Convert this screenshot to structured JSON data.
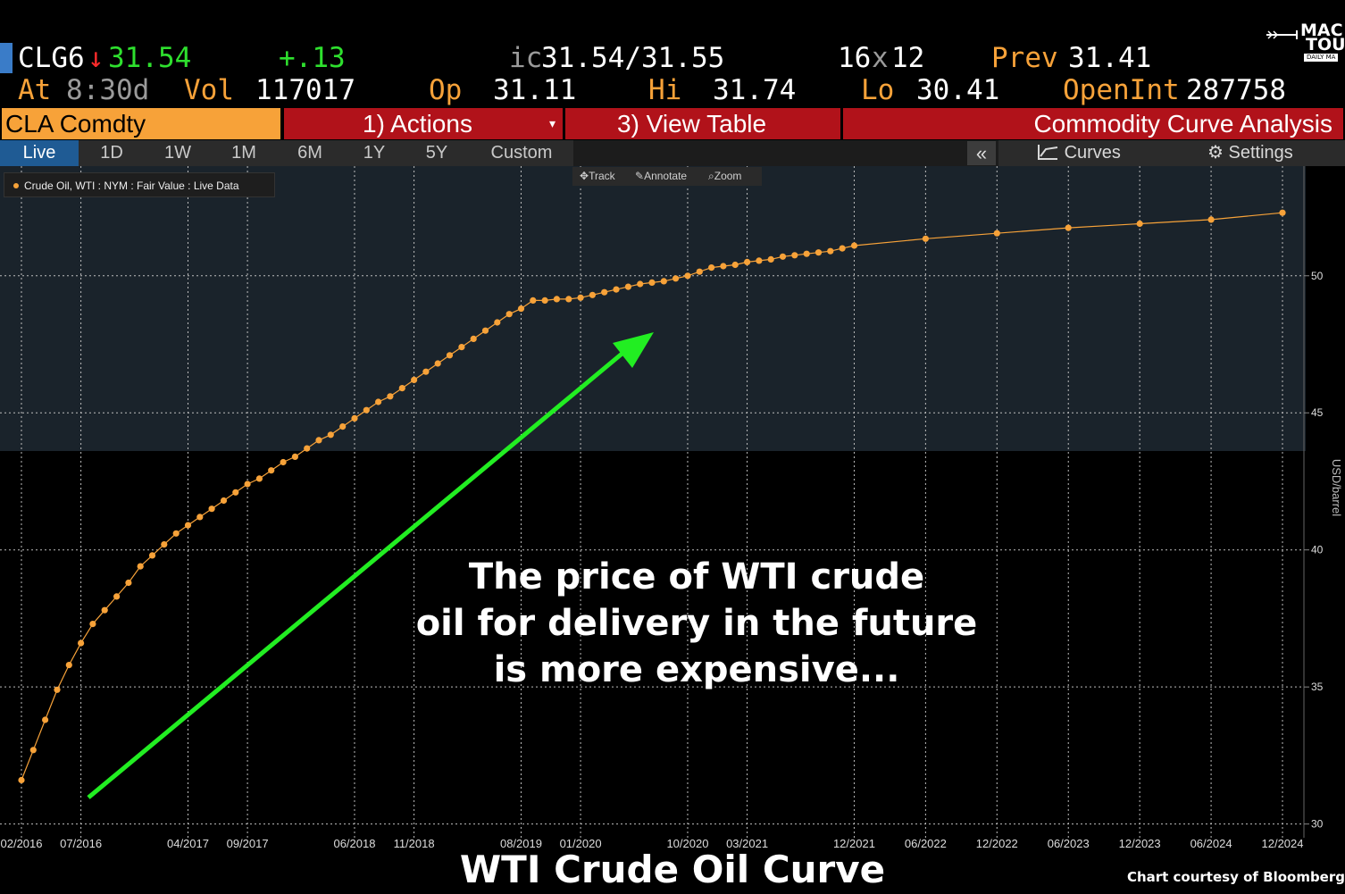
{
  "quote": {
    "ticker": "CLG6",
    "arrow": "↓",
    "last": "31.54",
    "change": "+.13",
    "bid_prefix": "ic",
    "bid_ask": "31.54/31.55",
    "size_bid": "16",
    "size_x": "x",
    "size_ask": "12",
    "prev_label": "Prev",
    "prev": "31.41",
    "at_label": "At",
    "at_time": "8:30d",
    "vol_label": "Vol",
    "vol": "117017",
    "op_label": "Op",
    "op": "31.11",
    "hi_label": "Hi",
    "hi": "31.74",
    "lo_label": "Lo",
    "lo": "30.41",
    "openint_label": "OpenInt",
    "openint": "287758"
  },
  "brand": {
    "line1": "MAC",
    "line2": "TOUR",
    "line3": "DAILY MA"
  },
  "toolbar": {
    "security": "CLA Comdty",
    "actions": "1) Actions",
    "view_table": "3) View Table",
    "function": "Commodity Curve Analysis"
  },
  "ranges": [
    "Live",
    "1D",
    "1W",
    "1M",
    "6M",
    "1Y",
    "5Y",
    "Custom"
  ],
  "active_range": "Live",
  "panel_controls": {
    "collapse": "«",
    "curves": "Curves",
    "settings": "Settings"
  },
  "tools": {
    "track": "Track",
    "annotate": "Annotate",
    "zoom": "Zoom"
  },
  "colors": {
    "series": "#f7a239",
    "arrow": "#22ee22",
    "toolbar_red": "#b1121a",
    "ticker_bg": "#f7a239",
    "active_tab": "#1f5b94"
  },
  "chart_data": {
    "type": "line",
    "legend": "Crude Oil, WTI : NYM : Fair Value : Live Data",
    "ylabel": "USD/barrel",
    "ylim": [
      29.5,
      54
    ],
    "yticks": [
      30,
      35,
      40,
      45,
      50
    ],
    "xlabels": [
      "02/2016",
      "07/2016",
      "04/2017",
      "09/2017",
      "06/2018",
      "11/2018",
      "08/2019",
      "01/2020",
      "10/2020",
      "03/2021",
      "12/2021",
      "06/2022",
      "12/2022",
      "06/2023",
      "12/2023",
      "06/2024",
      "12/2024"
    ],
    "xlim": [
      "2016-01",
      "2024-12"
    ],
    "series": [
      {
        "points": [
          [
            "2016-02",
            31.6
          ],
          [
            "2016-03",
            32.7
          ],
          [
            "2016-04",
            33.8
          ],
          [
            "2016-05",
            34.9
          ],
          [
            "2016-06",
            35.8
          ],
          [
            "2016-07",
            36.6
          ],
          [
            "2016-08",
            37.3
          ],
          [
            "2016-09",
            37.8
          ],
          [
            "2016-10",
            38.3
          ],
          [
            "2016-11",
            38.8
          ],
          [
            "2016-12",
            39.4
          ],
          [
            "2017-01",
            39.8
          ],
          [
            "2017-02",
            40.2
          ],
          [
            "2017-03",
            40.6
          ],
          [
            "2017-04",
            40.9
          ],
          [
            "2017-05",
            41.2
          ],
          [
            "2017-06",
            41.5
          ],
          [
            "2017-07",
            41.8
          ],
          [
            "2017-08",
            42.1
          ],
          [
            "2017-09",
            42.4
          ],
          [
            "2017-10",
            42.6
          ],
          [
            "2017-11",
            42.9
          ],
          [
            "2017-12",
            43.2
          ],
          [
            "2018-01",
            43.4
          ],
          [
            "2018-02",
            43.7
          ],
          [
            "2018-03",
            44.0
          ],
          [
            "2018-04",
            44.2
          ],
          [
            "2018-05",
            44.5
          ],
          [
            "2018-06",
            44.8
          ],
          [
            "2018-07",
            45.1
          ],
          [
            "2018-08",
            45.4
          ],
          [
            "2018-09",
            45.6
          ],
          [
            "2018-10",
            45.9
          ],
          [
            "2018-11",
            46.2
          ],
          [
            "2018-12",
            46.5
          ],
          [
            "2019-01",
            46.8
          ],
          [
            "2019-02",
            47.1
          ],
          [
            "2019-03",
            47.4
          ],
          [
            "2019-04",
            47.7
          ],
          [
            "2019-05",
            48.0
          ],
          [
            "2019-06",
            48.3
          ],
          [
            "2019-07",
            48.6
          ],
          [
            "2019-08",
            48.8
          ],
          [
            "2019-09",
            49.1
          ],
          [
            "2019-10",
            49.1
          ],
          [
            "2019-11",
            49.15
          ],
          [
            "2019-12",
            49.15
          ],
          [
            "2020-01",
            49.2
          ],
          [
            "2020-02",
            49.3
          ],
          [
            "2020-03",
            49.4
          ],
          [
            "2020-04",
            49.5
          ],
          [
            "2020-05",
            49.6
          ],
          [
            "2020-06",
            49.7
          ],
          [
            "2020-07",
            49.75
          ],
          [
            "2020-08",
            49.8
          ],
          [
            "2020-09",
            49.9
          ],
          [
            "2020-10",
            50.0
          ],
          [
            "2020-11",
            50.15
          ],
          [
            "2020-12",
            50.3
          ],
          [
            "2021-01",
            50.35
          ],
          [
            "2021-02",
            50.4
          ],
          [
            "2021-03",
            50.5
          ],
          [
            "2021-04",
            50.55
          ],
          [
            "2021-05",
            50.6
          ],
          [
            "2021-06",
            50.7
          ],
          [
            "2021-07",
            50.75
          ],
          [
            "2021-08",
            50.8
          ],
          [
            "2021-09",
            50.85
          ],
          [
            "2021-10",
            50.9
          ],
          [
            "2021-11",
            51.0
          ],
          [
            "2021-12",
            51.1
          ],
          [
            "2022-06",
            51.35
          ],
          [
            "2022-12",
            51.55
          ],
          [
            "2023-06",
            51.75
          ],
          [
            "2023-12",
            51.9
          ],
          [
            "2024-06",
            52.05
          ],
          [
            "2024-12",
            52.3
          ]
        ]
      }
    ]
  },
  "annotation": [
    "The price of WTI crude",
    "oil for delivery in the future",
    "is more expensive..."
  ],
  "caption": "WTI Crude Oil Curve",
  "credit": "Chart courtesy of Bloomberg"
}
